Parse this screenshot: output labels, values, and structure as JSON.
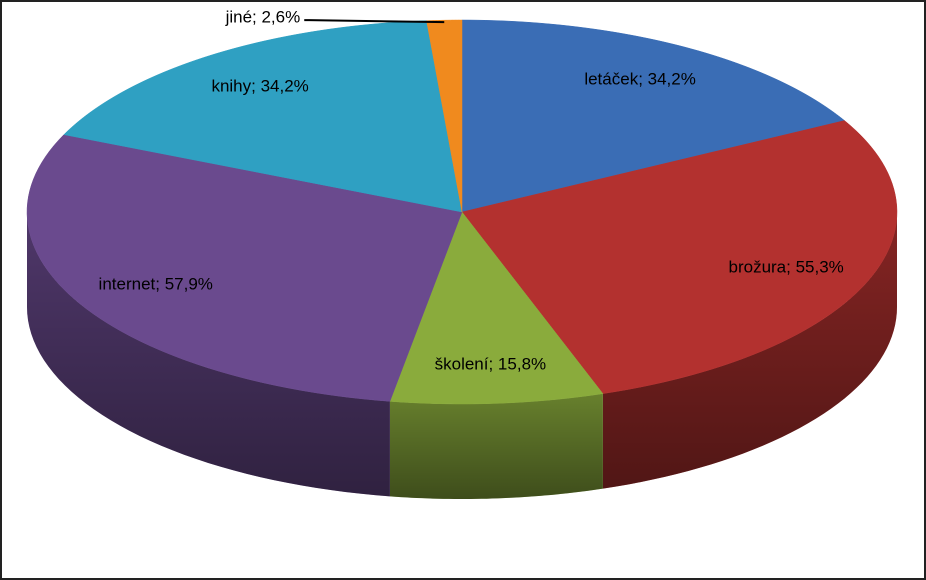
{
  "chart_data": {
    "type": "pie3d",
    "values": [
      34.2,
      55.3,
      15.8,
      57.9,
      34.2,
      2.6
    ],
    "value_labels": [
      "letáček; 34,2%",
      "brožura; 55,3%",
      "školení; 15,8%",
      "internet; 57,9%",
      "knihy; 34,2%",
      "jiné; 2,6%"
    ],
    "colors": [
      "#3a6db5",
      "#b3312f",
      "#8aab3c",
      "#6a4a8e",
      "#2fa0c2",
      "#f08a1e"
    ]
  }
}
